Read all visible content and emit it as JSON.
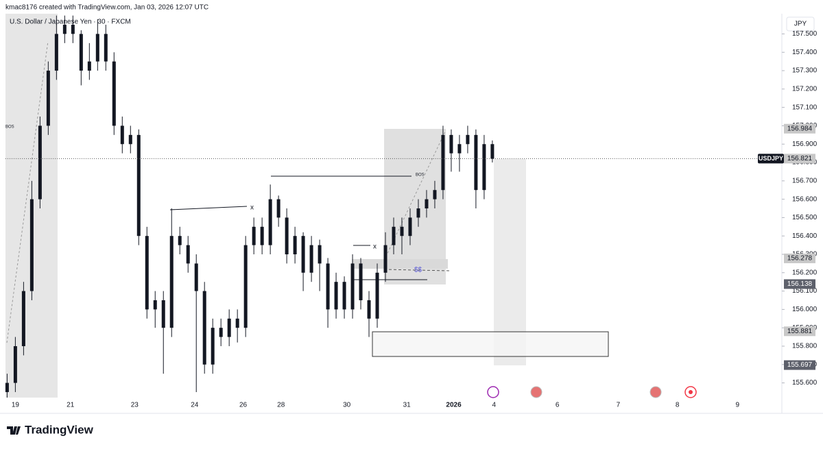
{
  "chart_data": {
    "type": "candlestick",
    "credit": "kmac8176 created with TradingView.com, Jan 03, 2026 12:07 UTC",
    "title": "U.S. Dollar / Japanese Yen · 30 · FXCM",
    "currency": "JPY",
    "symbol": "USDJPY",
    "brand": "TradingView",
    "color": "#131722",
    "x": [
      0,
      1,
      2,
      3,
      4,
      5,
      6,
      7,
      8,
      9,
      10,
      11,
      12,
      13,
      14,
      15,
      16,
      17,
      18,
      19,
      20,
      21,
      22,
      23,
      24,
      25,
      26,
      27,
      28,
      29,
      30,
      31,
      32,
      33,
      34,
      35,
      36,
      37,
      38,
      39,
      40,
      41,
      42,
      43,
      44,
      45,
      46,
      47,
      48,
      49,
      50,
      51,
      52,
      53,
      54,
      55,
      56,
      57,
      58,
      59
    ],
    "open": [
      155.55,
      155.6,
      155.8,
      156.1,
      156.6,
      157.0,
      157.3,
      157.5,
      157.55,
      157.5,
      157.3,
      157.35,
      157.5,
      157.35,
      157.0,
      156.9,
      156.95,
      156.4,
      156.0,
      156.05,
      155.9,
      156.4,
      156.35,
      156.25,
      156.1,
      155.7,
      155.9,
      155.85,
      155.95,
      155.9,
      156.35,
      156.45,
      156.35,
      156.6,
      156.5,
      156.3,
      156.4,
      156.2,
      156.35,
      156.25,
      156.0,
      156.15,
      156.0,
      156.25,
      156.05,
      155.95,
      156.2,
      156.35,
      156.45,
      156.4,
      156.5,
      156.55,
      156.6,
      156.65,
      156.95,
      156.85,
      156.9,
      156.95,
      156.65,
      156.9
    ],
    "high": [
      155.65,
      155.85,
      156.15,
      156.7,
      157.05,
      157.35,
      157.6,
      157.6,
      157.6,
      157.52,
      157.45,
      157.58,
      157.55,
      157.4,
      157.05,
      157.0,
      156.98,
      156.45,
      156.1,
      156.1,
      156.55,
      156.45,
      156.4,
      156.3,
      156.15,
      155.95,
      155.95,
      156.0,
      156.0,
      156.4,
      156.5,
      156.5,
      156.68,
      156.62,
      156.55,
      156.45,
      156.42,
      156.4,
      156.38,
      156.28,
      156.2,
      156.18,
      156.3,
      156.28,
      156.1,
      156.25,
      156.42,
      156.5,
      156.5,
      156.55,
      156.6,
      156.65,
      156.7,
      157.0,
      156.98,
      156.95,
      157.0,
      156.98,
      156.95,
      156.92
    ],
    "low": [
      155.52,
      155.55,
      155.75,
      156.05,
      156.55,
      156.95,
      157.25,
      157.45,
      157.45,
      157.22,
      157.25,
      157.3,
      157.3,
      156.95,
      156.85,
      156.85,
      156.35,
      155.95,
      155.9,
      155.65,
      155.85,
      156.3,
      156.2,
      155.55,
      155.65,
      155.65,
      155.8,
      155.8,
      155.82,
      155.85,
      156.3,
      156.3,
      156.3,
      156.45,
      156.25,
      156.25,
      156.1,
      156.15,
      156.1,
      155.9,
      155.95,
      155.95,
      155.95,
      156.0,
      155.85,
      155.9,
      156.15,
      156.3,
      156.3,
      156.35,
      156.45,
      156.5,
      156.55,
      156.6,
      156.75,
      156.75,
      156.85,
      156.55,
      156.6,
      156.8
    ],
    "close": [
      155.6,
      155.8,
      156.1,
      156.6,
      157.0,
      157.3,
      157.5,
      157.55,
      157.5,
      157.3,
      157.35,
      157.5,
      157.35,
      157.0,
      156.9,
      156.95,
      156.4,
      156.0,
      156.05,
      155.9,
      156.4,
      156.35,
      156.25,
      156.1,
      155.7,
      155.9,
      155.85,
      155.95,
      155.9,
      156.35,
      156.45,
      156.35,
      156.6,
      156.5,
      156.3,
      156.4,
      156.2,
      156.35,
      156.25,
      156.0,
      156.15,
      156.0,
      156.25,
      156.05,
      155.95,
      156.2,
      156.35,
      156.45,
      156.4,
      156.5,
      156.55,
      156.6,
      156.65,
      156.95,
      156.85,
      156.9,
      156.95,
      156.65,
      156.9,
      156.82
    ],
    "xlim": [
      -0.2,
      94.2
    ],
    "xticks": [
      {
        "value": 1,
        "label": "19"
      },
      {
        "value": 7.7,
        "label": "21"
      },
      {
        "value": 15.5,
        "label": "23"
      },
      {
        "value": 22.8,
        "label": "24"
      },
      {
        "value": 28.7,
        "label": "26"
      },
      {
        "value": 33.3,
        "label": "28"
      },
      {
        "value": 41.3,
        "label": "30"
      },
      {
        "value": 48.6,
        "label": "31"
      },
      {
        "value": 54.3,
        "label": "2026"
      },
      {
        "value": 59.2,
        "label": "4"
      },
      {
        "value": 66.9,
        "label": "6"
      },
      {
        "value": 74.3,
        "label": "7"
      },
      {
        "value": 81.5,
        "label": "8"
      },
      {
        "value": 88.8,
        "label": "9"
      }
    ],
    "ylim": [
      155.52,
      157.61
    ],
    "yticks": [
      {
        "value": 155.6,
        "label": "155.600"
      },
      {
        "value": 155.7,
        "label": "155.700"
      },
      {
        "value": 155.8,
        "label": "155.800"
      },
      {
        "value": 155.9,
        "label": "155.900"
      },
      {
        "value": 156.0,
        "label": "156.000"
      },
      {
        "value": 156.1,
        "label": "156.100"
      },
      {
        "value": 156.2,
        "label": "156.200"
      },
      {
        "value": 156.3,
        "label": "156.300"
      },
      {
        "value": 156.4,
        "label": "156.400"
      },
      {
        "value": 156.5,
        "label": "156.500"
      },
      {
        "value": 156.6,
        "label": "156.600"
      },
      {
        "value": 156.7,
        "label": "156.700"
      },
      {
        "value": 156.8,
        "label": "156.800"
      },
      {
        "value": 156.9,
        "label": "156.900"
      },
      {
        "value": 157.0,
        "label": "157.000"
      },
      {
        "value": 157.1,
        "label": "157.100"
      },
      {
        "value": 157.2,
        "label": "157.200"
      },
      {
        "value": 157.3,
        "label": "157.300"
      },
      {
        "value": 157.4,
        "label": "157.400"
      },
      {
        "value": 157.5,
        "label": "157.500"
      }
    ],
    "last_price": 156.821,
    "price_labels": [
      156.984,
      156.278,
      156.138,
      155.881,
      155.697
    ],
    "annotations": [
      "BOS",
      "x",
      "BOS",
      "x",
      "$$"
    ]
  }
}
